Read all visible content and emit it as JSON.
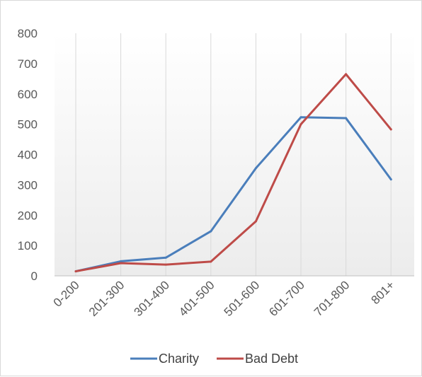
{
  "chart_data": {
    "type": "line",
    "categories": [
      "0-200",
      "201-300",
      "301-400",
      "401-500",
      "501-600",
      "601-700",
      "701-800",
      "801+"
    ],
    "series": [
      {
        "name": "Charity",
        "color": "#4a7ebb",
        "values": [
          15,
          48,
          60,
          147,
          355,
          523,
          520,
          318
        ]
      },
      {
        "name": "Bad Debt",
        "color": "#be4b48",
        "values": [
          15,
          42,
          37,
          47,
          180,
          500,
          665,
          483
        ]
      }
    ],
    "ylim": [
      0,
      800
    ],
    "yticks": [
      0,
      100,
      200,
      300,
      400,
      500,
      600,
      700,
      800
    ],
    "grid": "vertical",
    "legend": "bottom",
    "title": "",
    "xlabel": "",
    "ylabel": ""
  }
}
